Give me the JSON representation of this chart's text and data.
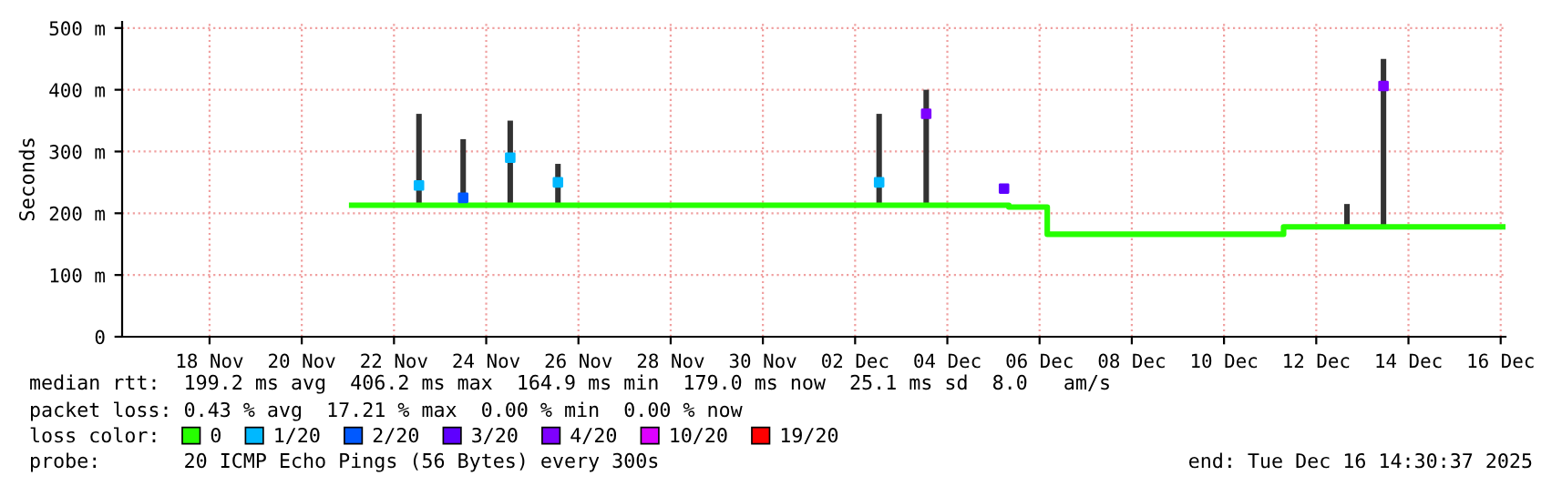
{
  "chart_data": {
    "type": "step",
    "ylabel": "Seconds",
    "xlim": [
      "2025-11-16T14:30",
      "2025-12-16T14:30"
    ],
    "xticks": [
      {
        "value": "2025-11-18T12:00",
        "label": "18 Nov"
      },
      {
        "value": "2025-11-20T12:00",
        "label": "20 Nov"
      },
      {
        "value": "2025-11-22T12:00",
        "label": "22 Nov"
      },
      {
        "value": "2025-11-24T12:00",
        "label": "24 Nov"
      },
      {
        "value": "2025-11-26T12:00",
        "label": "26 Nov"
      },
      {
        "value": "2025-11-28T12:00",
        "label": "28 Nov"
      },
      {
        "value": "2025-11-30T12:00",
        "label": "30 Nov"
      },
      {
        "value": "2025-12-02T12:00",
        "label": "02 Dec"
      },
      {
        "value": "2025-12-04T12:00",
        "label": "04 Dec"
      },
      {
        "value": "2025-12-06T12:00",
        "label": "06 Dec"
      },
      {
        "value": "2025-12-08T12:00",
        "label": "08 Dec"
      },
      {
        "value": "2025-12-10T12:00",
        "label": "10 Dec"
      },
      {
        "value": "2025-12-12T12:00",
        "label": "12 Dec"
      },
      {
        "value": "2025-12-14T12:00",
        "label": "14 Dec"
      },
      {
        "value": "2025-12-16T12:00",
        "label": "16 Dec"
      }
    ],
    "ylim": [
      0,
      510
    ],
    "yticks": [
      0,
      {
        "value": 100,
        "label": "100 m"
      },
      {
        "value": 200,
        "label": "200 m"
      },
      {
        "value": 300,
        "label": "300 m"
      },
      {
        "value": 400,
        "label": "400 m"
      },
      {
        "value": 500,
        "label": "500 m"
      }
    ],
    "grid": true,
    "legend": "bottom",
    "legend_title": "loss color:",
    "series": [
      {
        "type": "bar",
        "color": "#333333",
        "x": [
          "2025-11-23T01:00",
          "2025-11-24T00:00",
          "2025-11-25T00:30",
          "2025-11-26T01:20",
          "2025-12-03T00:30",
          "2025-12-04T01:00",
          "2025-12-13T04:00",
          "2025-12-13T23:00"
        ],
        "base": [
          213,
          213,
          213,
          213,
          213,
          213,
          180,
          180
        ],
        "values": [
          148,
          107,
          137,
          67,
          148,
          187,
          35,
          270
        ]
      },
      {
        "name": "0",
        "color": "#26ff00",
        "x": [
          "2025-11-21T14:00",
          "2025-12-05T20:00",
          "2025-12-06T16:00",
          "2025-12-11T19:00",
          "2025-12-16T14:00"
        ],
        "values": [
          213,
          210,
          166,
          178,
          178
        ]
      },
      {
        "type": "scatter",
        "marker": "square",
        "name": "1/20",
        "color": "#00b8ff",
        "x": [
          "2025-11-23T01:00",
          "2025-11-25T00:30",
          "2025-11-26T01:20",
          "2025-12-03T00:30"
        ],
        "values": [
          245,
          290,
          250,
          250
        ]
      },
      {
        "type": "scatter",
        "marker": "square",
        "name": "2/20",
        "color": "#0059ff",
        "x": [
          "2025-11-24T00:00"
        ],
        "values": [
          225
        ]
      },
      {
        "type": "scatter",
        "marker": "square",
        "name": "3/20",
        "color": "#5e00ff",
        "x": [
          "2025-12-05T17:30"
        ],
        "values": [
          240
        ]
      },
      {
        "type": "scatter",
        "marker": "square",
        "name": "4/20",
        "color": "#7e00ff",
        "x": [
          "2025-12-04T01:00",
          "2025-12-13T23:00"
        ],
        "values": [
          361,
          406
        ]
      },
      {
        "type": "scatter",
        "name": "10/20",
        "color": "#dd00ff"
      },
      {
        "type": "scatter",
        "name": "19/20",
        "color": "#ff0000"
      }
    ],
    "annotations": [
      "median rtt:  199.2 ms avg  406.2 ms max  164.9 ms min  179.0 ms now  25.1 ms sd  8.0   am/s",
      "packet loss: 0.43 % avg  17.21 % max  0.00 % min  0.00 % now",
      "probe:       20 ICMP Echo Pings (56 Bytes) every 300s",
      "end: Tue Dec 16 14:30:37 2025"
    ]
  }
}
